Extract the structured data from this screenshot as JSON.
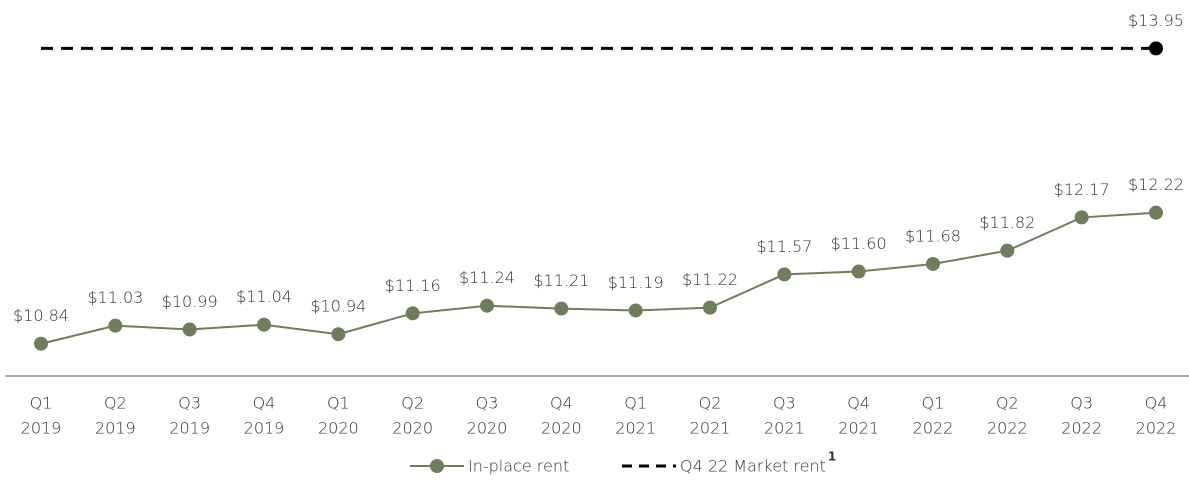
{
  "chart_data": {
    "type": "line",
    "categories": [
      [
        "Q1",
        "2019"
      ],
      [
        "Q2",
        "2019"
      ],
      [
        "Q3",
        "2019"
      ],
      [
        "Q4",
        "2019"
      ],
      [
        "Q1",
        "2020"
      ],
      [
        "Q2",
        "2020"
      ],
      [
        "Q3",
        "2020"
      ],
      [
        "Q4",
        "2020"
      ],
      [
        "Q1",
        "2021"
      ],
      [
        "Q2",
        "2021"
      ],
      [
        "Q3",
        "2021"
      ],
      [
        "Q4",
        "2021"
      ],
      [
        "Q1",
        "2022"
      ],
      [
        "Q2",
        "2022"
      ],
      [
        "Q3",
        "2022"
      ],
      [
        "Q4",
        "2022"
      ]
    ],
    "series": [
      {
        "name": "In-place rent",
        "color": "#6f7d5c",
        "style": "solid",
        "values": [
          10.84,
          11.03,
          10.99,
          11.04,
          10.94,
          11.16,
          11.24,
          11.21,
          11.19,
          11.22,
          11.57,
          11.6,
          11.68,
          11.82,
          12.17,
          12.22
        ],
        "value_labels": [
          "$10.84",
          "$11.03",
          "$10.99",
          "$11.04",
          "$10.94",
          "$11.16",
          "$11.24",
          "$11.21",
          "$11.19",
          "$11.22",
          "$11.57",
          "$11.60",
          "$11.68",
          "$11.82",
          "$12.17",
          "$12.22"
        ]
      },
      {
        "name": "Q4 22 Market rent",
        "superscript": "1",
        "color": "#000000",
        "style": "dashed",
        "values": [
          13.95,
          13.95,
          13.95,
          13.95,
          13.95,
          13.95,
          13.95,
          13.95,
          13.95,
          13.95,
          13.95,
          13.95,
          13.95,
          13.95,
          13.95,
          13.95
        ],
        "value_labels": [
          null,
          null,
          null,
          null,
          null,
          null,
          null,
          null,
          null,
          null,
          null,
          null,
          null,
          null,
          null,
          "$13.95"
        ]
      }
    ],
    "ylim": [
      10.5,
      14.46
    ]
  }
}
